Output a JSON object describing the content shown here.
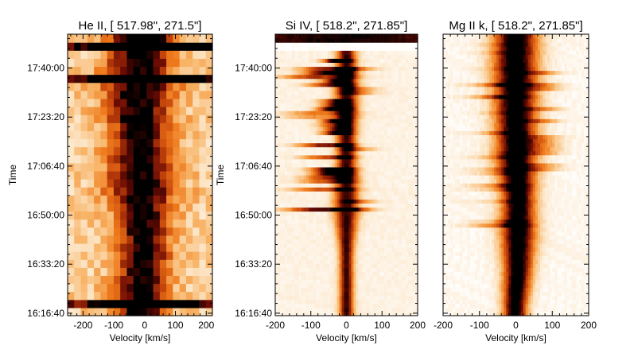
{
  "chart_data": [
    {
      "type": "heatmap",
      "title": "He II, [ 517.98\",  271.5\"]",
      "xlabel": "Velocity [km/s]",
      "ylabel": "Time",
      "xlim": [
        -250,
        220
      ],
      "x_ticks": [
        -200,
        -100,
        0,
        100,
        200
      ],
      "x_tick_labels": [
        "-200",
        "-100",
        "0",
        "100",
        "200"
      ],
      "ylim": [
        "16:15:50",
        "17:51:30"
      ],
      "y_ticks": [
        "16:16:40",
        "16:33:20",
        "16:50:00",
        "17:06:40",
        "17:23:20",
        "17:40:00"
      ],
      "colormap": [
        "#ffffff",
        "#fce4c4",
        "#f8b66a",
        "#ef7a1c",
        "#c2420a",
        "#6a0a04",
        "#000000"
      ],
      "core_profile": "wide core, dark trough near 0 km/s; saturated black rows near 16:20 and 17:41",
      "dark_bands": [
        "16:20",
        "17:41",
        "17:48"
      ]
    },
    {
      "type": "heatmap",
      "title": "Si IV, [  518.2\",  271.85\"]",
      "xlabel": "Velocity [km/s]",
      "ylabel": "Time",
      "xlim": [
        -200,
        200
      ],
      "x_ticks": [
        -200,
        -100,
        0,
        100,
        200
      ],
      "x_tick_labels": [
        "-200",
        "-100",
        "0",
        "100",
        "200"
      ],
      "ylim": [
        "16:15:50",
        "17:51:30"
      ],
      "y_ticks": [
        "16:16:40",
        "16:33:20",
        "16:50:00",
        "17:06:40",
        "17:23:20",
        "17:40:00"
      ],
      "colormap": [
        "#ffffff",
        "#fce4c4",
        "#f8b66a",
        "#ef7a1c",
        "#c2420a",
        "#6a0a04",
        "#000000"
      ],
      "core_profile": "narrow core near 0 km/s with broad blue-shifted bursts toward -150 km/s after 16:50",
      "dark_bands": []
    },
    {
      "type": "heatmap",
      "title": "Mg II k, [  518.2\",  271.85\"]",
      "xlabel": "Velocity [km/s]",
      "ylabel": "",
      "xlim": [
        -200,
        200
      ],
      "x_ticks": [
        -200,
        -100,
        0,
        100,
        200
      ],
      "x_tick_labels": [
        "-200",
        "-100",
        "0",
        "100",
        "200"
      ],
      "ylim": [
        "16:15:50",
        "17:51:30"
      ],
      "y_ticks": [],
      "colormap": [
        "#ffffff",
        "#fce4c4",
        "#f8b66a",
        "#ef7a1c",
        "#c2420a",
        "#6a0a04",
        "#000000"
      ],
      "core_profile": "dark core centred on 0 km/s, widening with time; red-shifted wing toward +100 km/s",
      "dark_bands": []
    }
  ]
}
